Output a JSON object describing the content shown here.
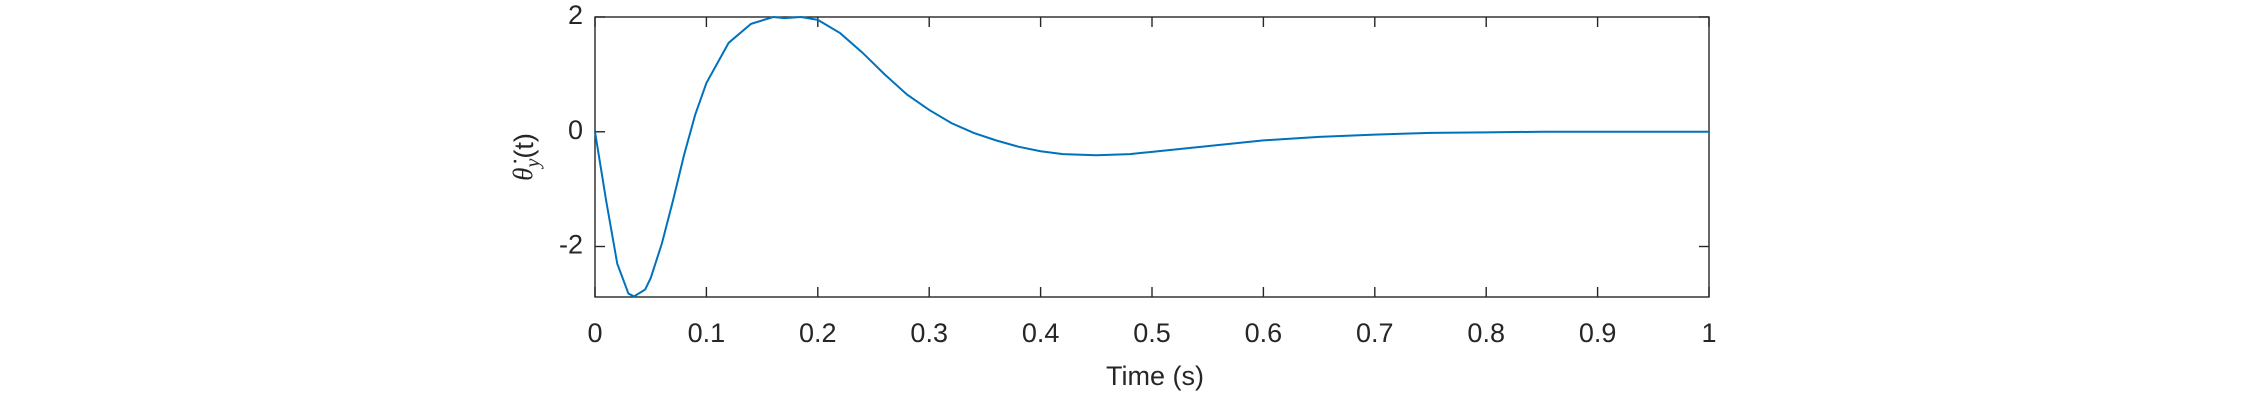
{
  "chart_data": {
    "type": "line",
    "x_label": "Time (s)",
    "y_label": {
      "base": "θ̇",
      "sub": "y",
      "rest": "(t)"
    },
    "x": [
      0,
      0.01,
      0.02,
      0.03,
      0.035,
      0.045,
      0.05,
      0.06,
      0.07,
      0.08,
      0.09,
      0.1,
      0.12,
      0.14,
      0.16,
      0.17,
      0.185,
      0.2,
      0.22,
      0.24,
      0.26,
      0.28,
      0.3,
      0.32,
      0.34,
      0.36,
      0.38,
      0.4,
      0.42,
      0.45,
      0.48,
      0.5,
      0.55,
      0.6,
      0.65,
      0.7,
      0.75,
      0.8,
      0.85,
      0.9,
      0.95,
      1
    ],
    "series": [
      {
        "color": "#0072bd",
        "values": [
          0,
          -1.2,
          -2.3,
          -2.82,
          -2.87,
          -2.75,
          -2.55,
          -1.95,
          -1.2,
          -0.4,
          0.3,
          0.85,
          1.55,
          1.88,
          2.0,
          1.98,
          2.0,
          1.95,
          1.72,
          1.38,
          1.0,
          0.65,
          0.38,
          0.15,
          -0.02,
          -0.15,
          -0.26,
          -0.34,
          -0.39,
          -0.41,
          -0.39,
          -0.35,
          -0.25,
          -0.15,
          -0.09,
          -0.05,
          -0.02,
          -0.01,
          0,
          0,
          0,
          0
        ]
      }
    ],
    "xlim": [
      0,
      1
    ],
    "ylim": [
      -2.88,
      2
    ],
    "xticks": [
      0,
      0.1,
      0.2,
      0.3,
      0.4,
      0.5,
      0.6,
      0.7,
      0.8,
      0.9,
      1
    ],
    "yticks": [
      -2,
      0,
      2
    ]
  }
}
